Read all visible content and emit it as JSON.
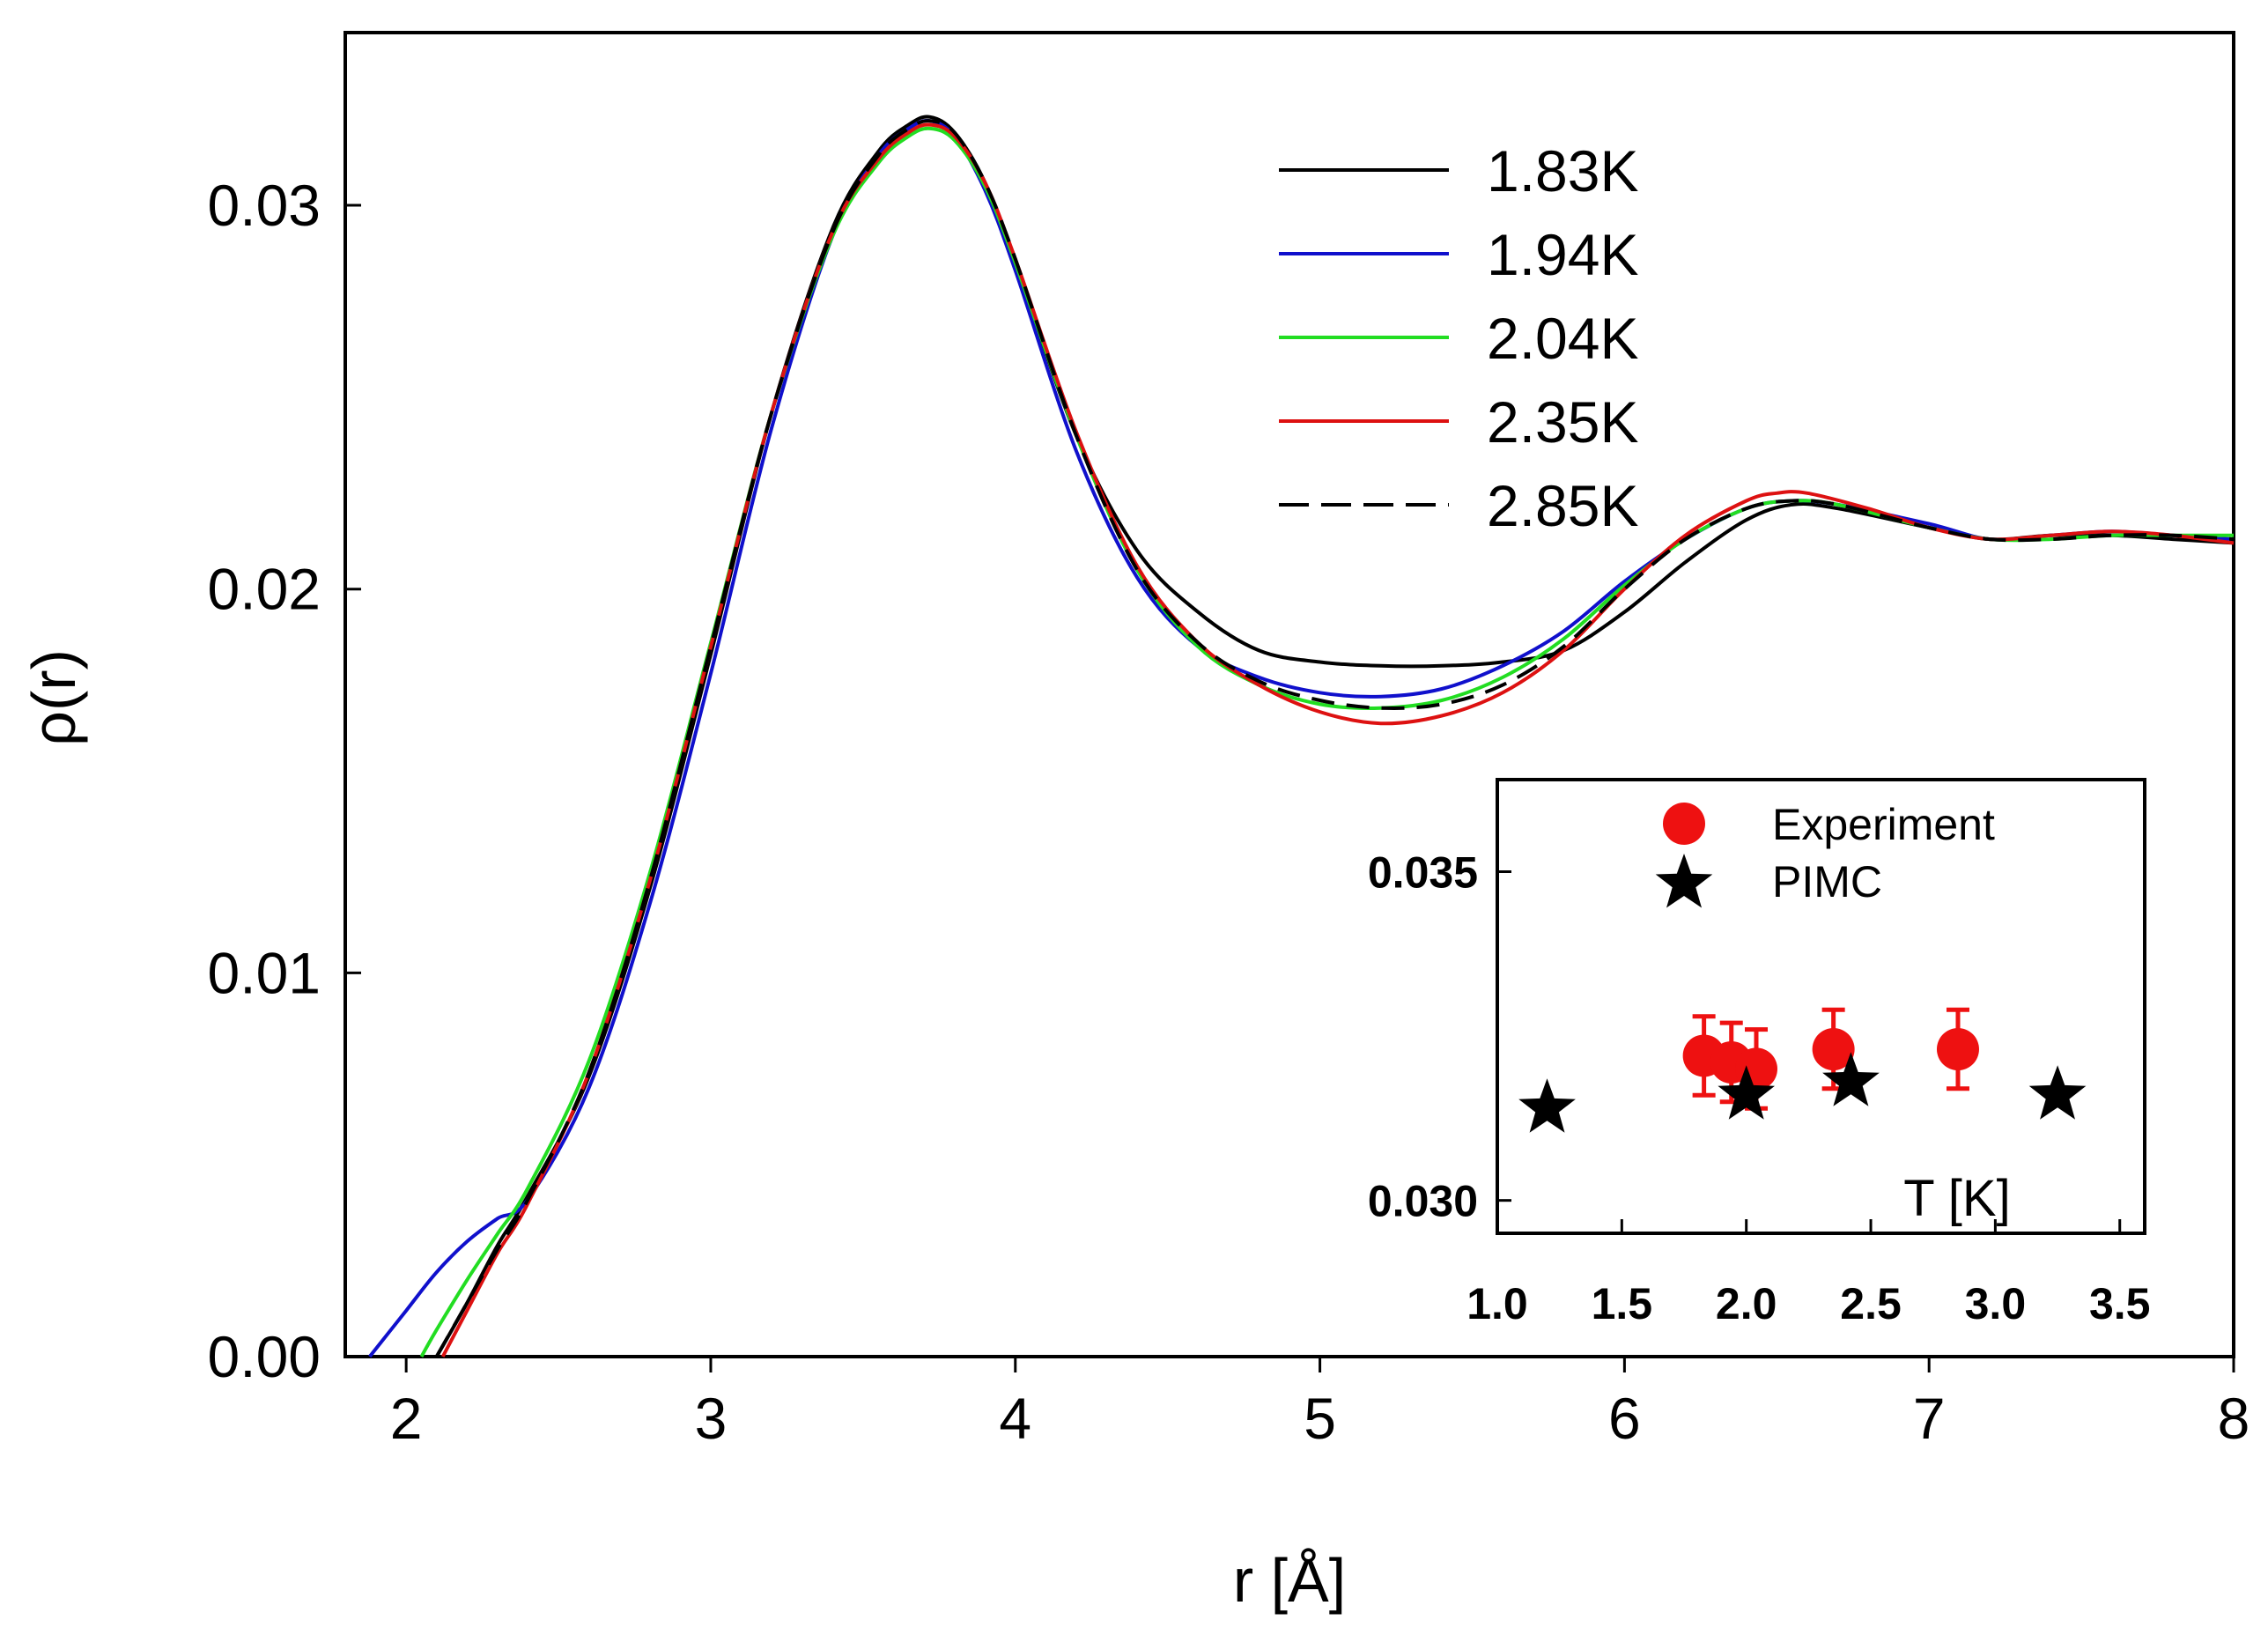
{
  "chart_data": [
    {
      "id": "main",
      "type": "line",
      "xlabel": "r [Å]",
      "ylabel": "ρ(r)",
      "xlim": [
        1.8,
        8.0
      ],
      "ylim": [
        0.0,
        0.0345
      ],
      "xticks": [
        2,
        3,
        4,
        5,
        6,
        7,
        8
      ],
      "xtick_labels": [
        "2",
        "3",
        "4",
        "5",
        "6",
        "7",
        "8"
      ],
      "yticks": [
        0.0,
        0.01,
        0.02,
        0.03
      ],
      "ytick_labels": [
        "0.00",
        "0.01",
        "0.02",
        "0.03"
      ],
      "legend_position": "top-right",
      "series": [
        {
          "name": "1.83K",
          "color": "#000000",
          "dash": "solid",
          "x": [
            2.1,
            2.2,
            2.3,
            2.4,
            2.6,
            2.8,
            3.0,
            3.2,
            3.4,
            3.55,
            3.65,
            3.72,
            3.8,
            3.9,
            4.0,
            4.2,
            4.4,
            4.6,
            4.8,
            5.0,
            5.2,
            5.4,
            5.6,
            5.8,
            6.0,
            6.2,
            6.4,
            6.55,
            6.7,
            7.0,
            7.2,
            7.4,
            7.6,
            7.8,
            8.0
          ],
          "y": [
            0.0,
            0.0014,
            0.0029,
            0.0042,
            0.0073,
            0.0122,
            0.0183,
            0.0246,
            0.0294,
            0.0314,
            0.0321,
            0.0323,
            0.0319,
            0.0306,
            0.0285,
            0.024,
            0.021,
            0.0194,
            0.0184,
            0.0181,
            0.018,
            0.018,
            0.0181,
            0.0184,
            0.0194,
            0.0207,
            0.0218,
            0.0222,
            0.0221,
            0.0216,
            0.0213,
            0.0214,
            0.0214,
            0.0213,
            0.0212
          ]
        },
        {
          "name": "1.94K",
          "color": "#1010cc",
          "dash": "solid",
          "x": [
            1.88,
            2.0,
            2.1,
            2.2,
            2.3,
            2.4,
            2.6,
            2.8,
            3.0,
            3.2,
            3.4,
            3.55,
            3.65,
            3.72,
            3.8,
            3.9,
            4.0,
            4.2,
            4.4,
            4.6,
            4.8,
            5.0,
            5.2,
            5.4,
            5.6,
            5.8,
            6.0,
            6.2,
            6.4,
            6.55,
            6.7,
            7.0,
            7.2,
            7.4,
            7.6,
            7.8,
            8.0
          ],
          "y": [
            0.0,
            0.0012,
            0.0022,
            0.003,
            0.0036,
            0.0041,
            0.007,
            0.0118,
            0.0178,
            0.0242,
            0.0292,
            0.0313,
            0.032,
            0.0322,
            0.0318,
            0.0304,
            0.0283,
            0.0236,
            0.0203,
            0.0185,
            0.0177,
            0.0173,
            0.0172,
            0.0174,
            0.018,
            0.0189,
            0.0202,
            0.0213,
            0.0221,
            0.0223,
            0.0222,
            0.0217,
            0.0213,
            0.0214,
            0.0215,
            0.0214,
            0.0213
          ]
        },
        {
          "name": "2.04K",
          "color": "#22dd22",
          "dash": "solid",
          "x": [
            2.05,
            2.1,
            2.2,
            2.3,
            2.4,
            2.6,
            2.8,
            3.0,
            3.2,
            3.4,
            3.55,
            3.65,
            3.72,
            3.8,
            3.9,
            4.0,
            4.2,
            4.4,
            4.6,
            4.8,
            5.0,
            5.2,
            5.4,
            5.6,
            5.8,
            6.0,
            6.2,
            6.4,
            6.55,
            6.7,
            7.0,
            7.2,
            7.4,
            7.6,
            7.8,
            8.0
          ],
          "y": [
            0.0,
            0.0007,
            0.002,
            0.0032,
            0.0044,
            0.0077,
            0.0126,
            0.0186,
            0.0246,
            0.0292,
            0.0311,
            0.0318,
            0.032,
            0.0317,
            0.0305,
            0.0285,
            0.024,
            0.0205,
            0.0185,
            0.0175,
            0.017,
            0.0169,
            0.0171,
            0.0177,
            0.0187,
            0.0201,
            0.0213,
            0.0221,
            0.0223,
            0.0222,
            0.0216,
            0.0213,
            0.0213,
            0.0214,
            0.0214,
            0.0214
          ]
        },
        {
          "name": "2.35K",
          "color": "#dd1111",
          "dash": "solid",
          "x": [
            2.12,
            2.2,
            2.3,
            2.4,
            2.6,
            2.8,
            3.0,
            3.2,
            3.4,
            3.55,
            3.65,
            3.72,
            3.8,
            3.9,
            4.0,
            4.2,
            4.4,
            4.6,
            4.8,
            5.0,
            5.2,
            5.4,
            5.6,
            5.8,
            6.0,
            6.2,
            6.4,
            6.5,
            6.6,
            6.8,
            7.0,
            7.2,
            7.4,
            7.6,
            7.8,
            8.0
          ],
          "y": [
            0.0,
            0.0012,
            0.0027,
            0.004,
            0.0074,
            0.0124,
            0.0185,
            0.0246,
            0.0293,
            0.0312,
            0.0319,
            0.0321,
            0.0318,
            0.0306,
            0.0286,
            0.0241,
            0.0206,
            0.0186,
            0.0175,
            0.0168,
            0.0165,
            0.0167,
            0.0173,
            0.0184,
            0.02,
            0.0214,
            0.0223,
            0.0225,
            0.0225,
            0.0221,
            0.0216,
            0.0213,
            0.0214,
            0.0215,
            0.0214,
            0.0212
          ]
        },
        {
          "name": "2.85K",
          "color": "#000000",
          "dash": "dashed",
          "x": [
            2.1,
            2.2,
            2.3,
            2.4,
            2.6,
            2.8,
            3.0,
            3.2,
            3.4,
            3.55,
            3.65,
            3.72,
            3.8,
            3.9,
            4.0,
            4.2,
            4.4,
            4.6,
            4.8,
            5.0,
            5.2,
            5.4,
            5.6,
            5.8,
            6.0,
            6.2,
            6.4,
            6.55,
            6.7,
            7.0,
            7.2,
            7.4,
            7.6,
            7.8,
            8.0
          ],
          "y": [
            0.0,
            0.0014,
            0.0028,
            0.0041,
            0.0074,
            0.0124,
            0.0185,
            0.0246,
            0.0293,
            0.0313,
            0.032,
            0.0322,
            0.0319,
            0.0306,
            0.0286,
            0.024,
            0.0205,
            0.0186,
            0.0176,
            0.0171,
            0.0169,
            0.017,
            0.0175,
            0.0185,
            0.02,
            0.0213,
            0.0221,
            0.0223,
            0.0222,
            0.0216,
            0.0213,
            0.0213,
            0.0214,
            0.0214,
            0.0213
          ]
        }
      ]
    },
    {
      "id": "inset",
      "type": "scatter",
      "xlabel": "T [K]",
      "xlim": [
        1.0,
        3.6
      ],
      "ylim": [
        0.0295,
        0.0364
      ],
      "xticks": [
        1.0,
        1.5,
        2.0,
        2.5,
        3.0,
        3.5
      ],
      "xtick_labels": [
        "1.0",
        "1.5",
        "2.0",
        "2.5",
        "3.0",
        "3.5"
      ],
      "yticks": [
        0.03,
        0.035
      ],
      "ytick_labels": [
        "0.030",
        "0.035"
      ],
      "legend_position": "top-left",
      "series": [
        {
          "name": "Experiment",
          "marker": "circle",
          "color": "#ee1111",
          "x": [
            1.83,
            1.94,
            2.04,
            2.35,
            2.85
          ],
          "y": [
            0.0322,
            0.0321,
            0.032,
            0.0323,
            0.0323
          ],
          "yerr": [
            0.0006,
            0.0006,
            0.0006,
            0.0006,
            0.0006
          ]
        },
        {
          "name": "PIMC",
          "marker": "star",
          "color": "#000000",
          "x": [
            1.2,
            2.0,
            2.42,
            3.25
          ],
          "y": [
            0.0314,
            0.0316,
            0.0318,
            0.0316
          ]
        }
      ]
    }
  ]
}
